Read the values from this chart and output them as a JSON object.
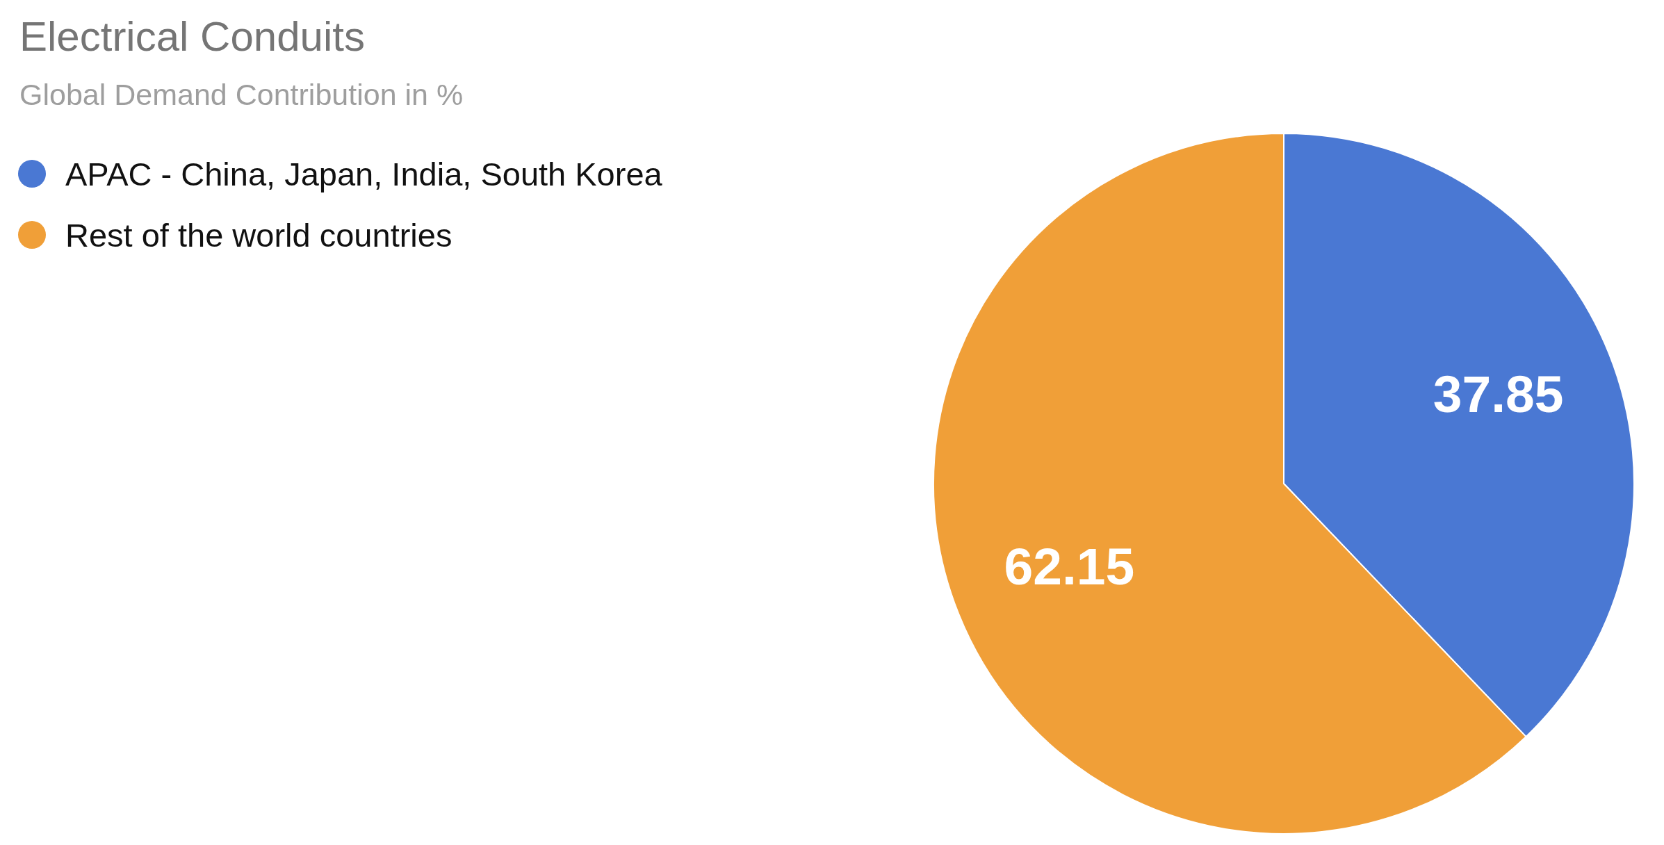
{
  "chart_data": {
    "type": "pie",
    "title": "Electrical Conduits",
    "subtitle": "Global Demand Contribution in %",
    "categories": [
      "APAC - China, Japan, India, South Korea",
      "Rest of the world countries"
    ],
    "values": [
      37.85,
      62.15
    ],
    "colors": [
      "#4a78d3",
      "#f09f38"
    ],
    "legend": "top left",
    "data_labels": true
  }
}
